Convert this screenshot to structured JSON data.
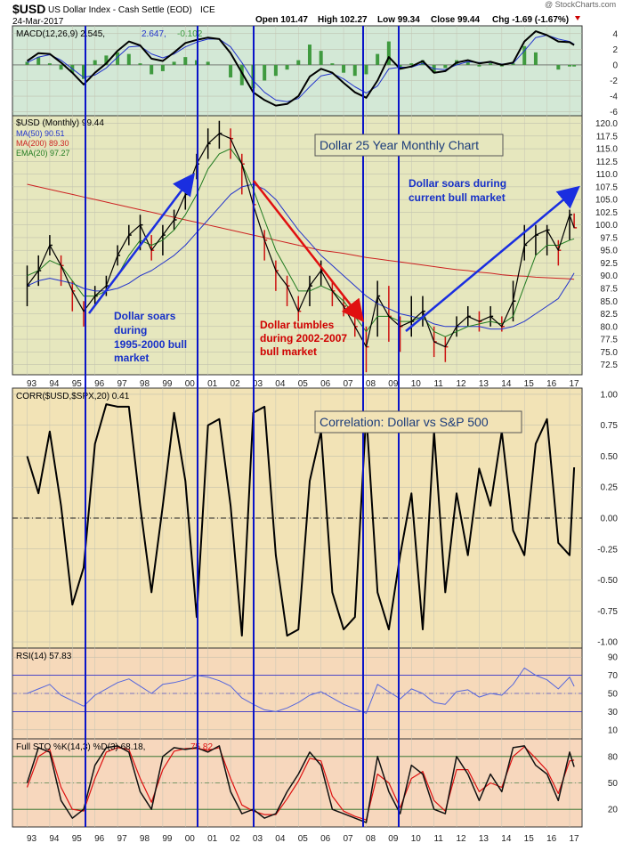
{
  "header": {
    "symbol": "$USD",
    "name": "US Dollar Index - Cash Settle (EOD)",
    "exchange": "ICE",
    "date": "24-Mar-2017",
    "open": "Open 101.47",
    "high": "High 102.27",
    "low": "Low 99.34",
    "close": "Close 99.44",
    "chg": "Chg -1.69 (-1.67%)",
    "watermark": "@ StockCharts.com"
  },
  "colors": {
    "macd_bg": "#d3e8d6",
    "price_bg": "#e6e7be",
    "corr_bg": "#f2e3b6",
    "rsi_bg": "#f6d9ba",
    "sto_bg": "#f7d7bd",
    "ma50": "#2233cc",
    "ma200": "#cc2222",
    "ema20": "#1f7a1f",
    "up_arrow": "#1a2ee0",
    "down_arrow": "#e01010",
    "vline": "#0a14c8",
    "macd_hist": "#3f9a3f",
    "rsi_line": "#5566dd",
    "sto_k": "#111111",
    "sto_d": "#dd1111",
    "annotation": "#1630c8",
    "annotation_red": "#d00000"
  },
  "x_axis": {
    "labels": [
      "93",
      "94",
      "95",
      "96",
      "97",
      "98",
      "99",
      "00",
      "01",
      "02",
      "03",
      "04",
      "05",
      "06",
      "07",
      "08",
      "09",
      "10",
      "11",
      "12",
      "13",
      "14",
      "15",
      "16",
      "17"
    ]
  },
  "annotations": {
    "title_box": "Dollar 25 Year Monthly Chart",
    "corr_box": "Correlation:  Dollar vs S&P 500",
    "soar1": [
      "Dollar soars",
      "during",
      "1995-2000 bull",
      "market"
    ],
    "tumble": [
      "Dollar tumbles",
      "during 2002-2007",
      "bull market"
    ],
    "soar2": [
      "Dollar soars during",
      "current bull market"
    ]
  },
  "chart_data": [
    {
      "panel": "macd",
      "type": "line",
      "legend": [
        "MACD(12,26,9) 2.545,",
        "2.647,",
        "-0.102"
      ],
      "ylim": [
        -6.5,
        5
      ],
      "yticks": [
        "4",
        "2",
        "0",
        "-2",
        "-4",
        "-6"
      ],
      "ytick_values": [
        4,
        2,
        0,
        -2,
        -4,
        -6
      ],
      "x": [
        1993,
        1993.5,
        1994,
        1994.5,
        1995,
        1995.5,
        1996,
        1996.5,
        1997,
        1997.5,
        1998,
        1998.5,
        1999,
        1999.5,
        2000,
        2000.5,
        2001,
        2001.5,
        2002,
        2002.5,
        2003,
        2003.5,
        2004,
        2004.5,
        2005,
        2005.5,
        2006,
        2006.5,
        2007,
        2007.5,
        2008,
        2008.5,
        2009,
        2009.5,
        2010,
        2010.5,
        2011,
        2011.5,
        2012,
        2012.5,
        2013,
        2013.5,
        2014,
        2014.5,
        2015,
        2015.5,
        2016,
        2016.5,
        2017,
        2017.2
      ],
      "series": [
        {
          "values": [
            0.5,
            1.5,
            1.4,
            0.3,
            -1.0,
            -2.5,
            -1.0,
            0.2,
            1.8,
            3.0,
            2.5,
            0.8,
            0.5,
            1.6,
            2.8,
            3.2,
            3.5,
            3.3,
            1.5,
            -1.0,
            -3.5,
            -4.5,
            -5.2,
            -5.0,
            -4.0,
            -1.5,
            -0.5,
            -1.0,
            -2.3,
            -3.5,
            -4.2,
            -2.0,
            1.0,
            -0.5,
            -0.2,
            0.5,
            -1.0,
            -0.8,
            0.3,
            0.6,
            0.2,
            0.4,
            0.0,
            0.3,
            3.0,
            4.3,
            3.8,
            3.0,
            2.9,
            2.545
          ]
        },
        {
          "values": [
            0.3,
            1.0,
            1.3,
            0.6,
            -0.5,
            -1.6,
            -1.3,
            -0.4,
            1.0,
            2.3,
            2.4,
            1.4,
            0.9,
            1.4,
            2.3,
            2.9,
            3.3,
            3.3,
            2.3,
            0.3,
            -2.0,
            -3.5,
            -4.5,
            -4.7,
            -4.3,
            -2.8,
            -1.4,
            -1.1,
            -1.8,
            -2.8,
            -3.6,
            -2.7,
            -0.5,
            -0.3,
            -0.3,
            0.2,
            -0.5,
            -0.6,
            0.0,
            0.4,
            0.3,
            0.3,
            0.1,
            0.2,
            1.8,
            3.5,
            3.8,
            3.3,
            3.0,
            2.647
          ]
        }
      ]
    },
    {
      "panel": "price",
      "type": "line",
      "legend": [
        "$USD (Monthly) 99.44",
        "MA(50) 90.51",
        "MA(200) 89.30",
        "EMA(20) 97.27"
      ],
      "ylim": [
        70.5,
        121.5
      ],
      "yticks": [
        "120.0",
        "117.5",
        "115.0",
        "112.5",
        "110.0",
        "107.5",
        "105.0",
        "102.5",
        "100.0",
        "97.5",
        "95.0",
        "92.5",
        "90.0",
        "87.5",
        "85.0",
        "82.5",
        "80.0",
        "77.5",
        "75.0",
        "72.5"
      ],
      "ytick_values": [
        120,
        117.5,
        115,
        112.5,
        110,
        107.5,
        105,
        102.5,
        100,
        97.5,
        95,
        92.5,
        90,
        87.5,
        85,
        82.5,
        80,
        77.5,
        75,
        72.5
      ],
      "x": [
        1993,
        1993.5,
        1994,
        1994.5,
        1995,
        1995.5,
        1996,
        1996.5,
        1997,
        1997.5,
        1998,
        1998.5,
        1999,
        1999.5,
        2000,
        2000.5,
        2001,
        2001.5,
        2002,
        2002.5,
        2003,
        2003.5,
        2004,
        2004.5,
        2005,
        2005.5,
        2006,
        2006.5,
        2007,
        2007.5,
        2008,
        2008.5,
        2009,
        2009.5,
        2010,
        2010.5,
        2011,
        2011.5,
        2012,
        2012.5,
        2013,
        2013.5,
        2014,
        2014.5,
        2015,
        2015.5,
        2016,
        2016.5,
        2017,
        2017.2
      ],
      "close": [
        88,
        91,
        96,
        92,
        87,
        83,
        86,
        88,
        94,
        98,
        100,
        95,
        98,
        101,
        106,
        112,
        116,
        118,
        117,
        112,
        104,
        97,
        91,
        88,
        83,
        88,
        91,
        87,
        84,
        80,
        76,
        86,
        82,
        80,
        81,
        83,
        77,
        76,
        80,
        82,
        81,
        82,
        80,
        85,
        96,
        98,
        99,
        95,
        102,
        99.44
      ],
      "high": [
        92,
        94,
        98,
        94,
        89,
        85,
        88,
        90,
        96,
        100,
        102,
        98,
        100,
        103,
        108,
        114,
        119,
        120.5,
        119,
        114,
        106,
        99,
        93,
        90,
        86,
        90,
        93,
        89,
        86,
        82,
        80,
        89,
        88,
        82,
        86,
        86,
        80,
        78,
        82,
        84,
        83,
        84,
        82,
        89,
        100,
        100,
        100,
        97,
        103,
        102.27
      ],
      "low": [
        84,
        88,
        94,
        88,
        83,
        80,
        84,
        86,
        92,
        96,
        95,
        93,
        94,
        99,
        103,
        109,
        113,
        115,
        113,
        106,
        99,
        93,
        87,
        84,
        81,
        84,
        88,
        84,
        82,
        78,
        71,
        78,
        77,
        75,
        78,
        80,
        74,
        73,
        78,
        80,
        79,
        80,
        79,
        81,
        93,
        94,
        94,
        92,
        97,
        99.34
      ],
      "series": [
        {
          "name": "MA(50)",
          "values": [
            88,
            89,
            89.5,
            89,
            88.5,
            87.5,
            87,
            87,
            87.5,
            88.5,
            90,
            91,
            92.5,
            94,
            96,
            98.5,
            101,
            103.5,
            106,
            107.5,
            108,
            107,
            105,
            102,
            99,
            96.5,
            94,
            92,
            90,
            88,
            86,
            84.5,
            83.5,
            82.5,
            82,
            81.5,
            80.5,
            80,
            80,
            80,
            80,
            79.5,
            79.5,
            80,
            81,
            82.5,
            84,
            85.5,
            89,
            90.51
          ]
        },
        {
          "name": "MA(200)",
          "values": [
            108,
            107.5,
            107,
            106.5,
            106,
            105.5,
            105,
            104.5,
            104,
            103.5,
            103,
            102.5,
            102,
            101.5,
            101,
            100.5,
            100,
            99.5,
            99,
            98.5,
            98,
            97.5,
            97,
            96.5,
            96,
            95.5,
            95,
            94.7,
            94.4,
            94,
            93.6,
            93.3,
            93,
            92.7,
            92.4,
            92.1,
            91.8,
            91.5,
            91.2,
            91,
            90.7,
            90.5,
            90.2,
            90,
            89.9,
            89.7,
            89.6,
            89.5,
            89.4,
            89.3
          ]
        },
        {
          "name": "EMA(20)",
          "values": [
            90,
            91,
            93,
            92,
            89,
            86,
            86,
            87,
            90,
            94,
            97,
            96,
            97,
            99,
            102,
            106,
            111,
            114,
            115,
            112,
            107,
            101,
            95,
            91,
            87,
            87,
            88,
            87,
            85,
            82,
            79,
            82,
            82,
            81,
            81,
            82,
            79,
            78,
            79,
            80,
            80.5,
            81,
            80.5,
            82,
            88,
            94,
            96,
            96,
            97,
            97.27
          ]
        }
      ]
    },
    {
      "panel": "correlation",
      "type": "line",
      "legend": [
        "CORR($USD,$SPX,20) 0.41"
      ],
      "ylim": [
        -1.05,
        1.05
      ],
      "yticks": [
        "1.00",
        "0.75",
        "0.50",
        "0.25",
        "0.00",
        "-0.25",
        "-0.50",
        "-0.75",
        "-1.00"
      ],
      "ytick_values": [
        1,
        0.75,
        0.5,
        0.25,
        0,
        -0.25,
        -0.5,
        -0.75,
        -1
      ],
      "x": [
        1993,
        1993.5,
        1994,
        1994.5,
        1995,
        1995.5,
        1996,
        1996.5,
        1997,
        1997.5,
        1998,
        1998.5,
        1999,
        1999.5,
        2000,
        2000.5,
        2001,
        2001.5,
        2002,
        2002.5,
        2003,
        2003.5,
        2004,
        2004.5,
        2005,
        2005.5,
        2006,
        2006.5,
        2007,
        2007.5,
        2008,
        2008.5,
        2009,
        2009.5,
        2010,
        2010.5,
        2011,
        2011.5,
        2012,
        2012.5,
        2013,
        2013.5,
        2014,
        2014.5,
        2015,
        2015.5,
        2016,
        2016.5,
        2017,
        2017.2
      ],
      "series": [
        {
          "values": [
            0.5,
            0.2,
            0.7,
            0.1,
            -0.7,
            -0.4,
            0.6,
            0.92,
            0.9,
            0.9,
            0.1,
            -0.6,
            0.1,
            0.85,
            0.3,
            -0.8,
            0.75,
            0.8,
            0.1,
            -0.95,
            0.85,
            0.9,
            -0.3,
            -0.95,
            -0.9,
            0.3,
            0.7,
            -0.6,
            -0.9,
            -0.8,
            0.85,
            -0.6,
            -0.9,
            -0.3,
            0.2,
            -0.9,
            0.7,
            -0.6,
            0.2,
            -0.3,
            0.4,
            0.1,
            0.7,
            -0.1,
            -0.3,
            0.6,
            0.8,
            -0.2,
            -0.3,
            0.41
          ]
        }
      ]
    },
    {
      "panel": "rsi",
      "type": "line",
      "legend": [
        "RSI(14) 57.83"
      ],
      "ylim": [
        0,
        100
      ],
      "yticks": [
        "90",
        "70",
        "50",
        "30",
        "10"
      ],
      "ytick_values": [
        90,
        70,
        50,
        30,
        10
      ],
      "x": [
        1993,
        1993.5,
        1994,
        1994.5,
        1995,
        1995.5,
        1996,
        1996.5,
        1997,
        1997.5,
        1998,
        1998.5,
        1999,
        1999.5,
        2000,
        2000.5,
        2001,
        2001.5,
        2002,
        2002.5,
        2003,
        2003.5,
        2004,
        2004.5,
        2005,
        2005.5,
        2006,
        2006.5,
        2007,
        2007.5,
        2008,
        2008.5,
        2009,
        2009.5,
        2010,
        2010.5,
        2011,
        2011.5,
        2012,
        2012.5,
        2013,
        2013.5,
        2014,
        2014.5,
        2015,
        2015.5,
        2016,
        2016.5,
        2017,
        2017.2
      ],
      "series": [
        {
          "values": [
            50,
            55,
            60,
            48,
            42,
            36,
            48,
            55,
            62,
            66,
            58,
            50,
            60,
            62,
            65,
            70,
            68,
            64,
            58,
            45,
            38,
            32,
            30,
            34,
            40,
            48,
            52,
            45,
            38,
            33,
            28,
            60,
            52,
            44,
            55,
            50,
            40,
            38,
            52,
            54,
            46,
            50,
            48,
            60,
            78,
            70,
            65,
            55,
            68,
            57.83
          ]
        }
      ]
    },
    {
      "panel": "stochastic",
      "type": "line",
      "legend": [
        "Full STO %K(14,3) %D(3) 68.18,",
        "75.82"
      ],
      "ylim": [
        0,
        100
      ],
      "yticks": [
        "80",
        "50",
        "20"
      ],
      "ytick_values": [
        80,
        50,
        20
      ],
      "x": [
        1993,
        1993.5,
        1994,
        1994.5,
        1995,
        1995.5,
        1996,
        1996.5,
        1997,
        1997.5,
        1998,
        1998.5,
        1999,
        1999.5,
        2000,
        2000.5,
        2001,
        2001.5,
        2002,
        2002.5,
        2003,
        2003.5,
        2004,
        2004.5,
        2005,
        2005.5,
        2006,
        2006.5,
        2007,
        2007.5,
        2008,
        2008.5,
        2009,
        2009.5,
        2010,
        2010.5,
        2011,
        2011.5,
        2012,
        2012.5,
        2013,
        2013.5,
        2014,
        2014.5,
        2015,
        2015.5,
        2016,
        2016.5,
        2017,
        2017.2
      ],
      "series": [
        {
          "name": "%K",
          "values": [
            50,
            90,
            85,
            30,
            10,
            20,
            70,
            90,
            92,
            85,
            40,
            20,
            80,
            90,
            88,
            90,
            85,
            92,
            40,
            15,
            20,
            10,
            15,
            40,
            60,
            85,
            70,
            20,
            15,
            10,
            5,
            80,
            40,
            15,
            70,
            60,
            20,
            15,
            80,
            60,
            30,
            60,
            40,
            90,
            92,
            70,
            60,
            30,
            85,
            68.18
          ]
        },
        {
          "name": "%D",
          "values": [
            45,
            80,
            88,
            45,
            20,
            18,
            55,
            85,
            90,
            88,
            55,
            28,
            65,
            86,
            89,
            89,
            87,
            90,
            55,
            25,
            18,
            14,
            14,
            32,
            52,
            78,
            75,
            35,
            18,
            12,
            8,
            60,
            50,
            22,
            55,
            63,
            30,
            18,
            65,
            65,
            40,
            50,
            45,
            80,
            91,
            78,
            64,
            38,
            75,
            75.82
          ]
        }
      ]
    }
  ]
}
